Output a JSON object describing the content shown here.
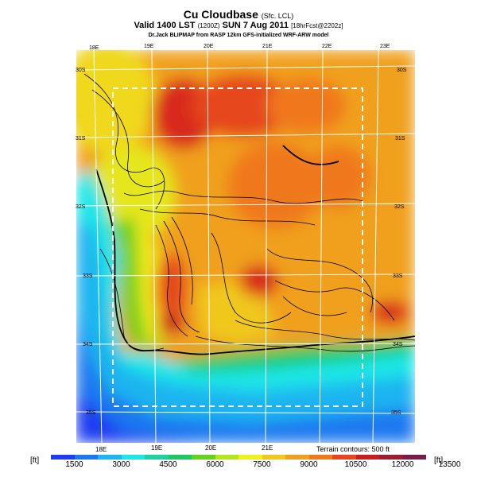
{
  "header": {
    "title": "Cu Cloudbase",
    "title_suffix": "(Sfc. LCL)",
    "valid_line": "Valid 1400 LST",
    "valid_utc": "(1200Z)",
    "valid_date": "SUN 7 Aug 2011",
    "forecast": "[18hrFcst@2202z]",
    "credit": "Dr.Jack BLIPMAP from RASP 12km GFS-initialized WRF-ARW model"
  },
  "grid_labels": {
    "top_lon": [
      "18E",
      "19E",
      "20E",
      "21E",
      "22E",
      "23E"
    ],
    "bottom_lon": [
      "18E",
      "19E",
      "20E",
      "21E"
    ],
    "left_lat": [
      "30S",
      "31S",
      "32S",
      "33S",
      "34S",
      "35S"
    ],
    "right_lat": [
      "30S",
      "31S",
      "32S",
      "33S",
      "34S",
      "35S"
    ]
  },
  "terrain_note": "Terrain contours: 500 ft",
  "colorbar": {
    "unit_left": "[ft]",
    "unit_right": "[ft]",
    "ticks": [
      "1500",
      "3000",
      "4500",
      "6000",
      "7500",
      "9000",
      "10500",
      "12000",
      "13500"
    ],
    "colors": [
      "#1e3cf0",
      "#1e78f0",
      "#1eb4f0",
      "#1ee6e6",
      "#1ed2a0",
      "#1ec864",
      "#64d21e",
      "#b4e61e",
      "#f0f01e",
      "#f0c81e",
      "#f0a01e",
      "#f0781e",
      "#e6461e",
      "#c81e1e",
      "#9b1e32",
      "#781e46"
    ]
  }
}
